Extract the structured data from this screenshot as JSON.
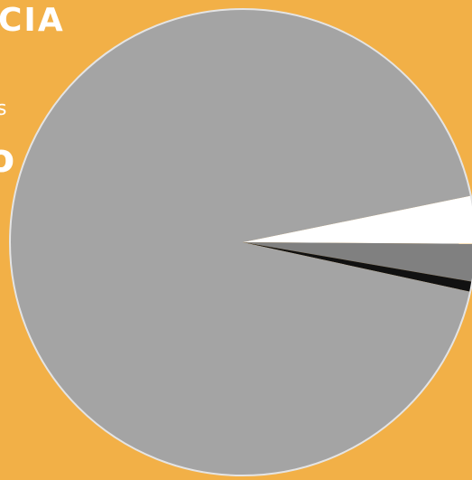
{
  "background_text": {
    "line1": "CIA",
    "line2": "s",
    "line3": "o"
  },
  "colors": {
    "background": "#F2B047",
    "outline": "#E4E4E4"
  },
  "chart_data": {
    "type": "pie",
    "title": "",
    "start_angle_deg": 11.5,
    "direction": "clockwise",
    "slices": [
      {
        "value": 3.3,
        "color": "#FFFFFF"
      },
      {
        "value": 2.6,
        "color": "#808080"
      },
      {
        "value": 0.7,
        "color": "#111111"
      },
      {
        "value": 93.4,
        "color": "#A4A4A4"
      }
    ]
  }
}
